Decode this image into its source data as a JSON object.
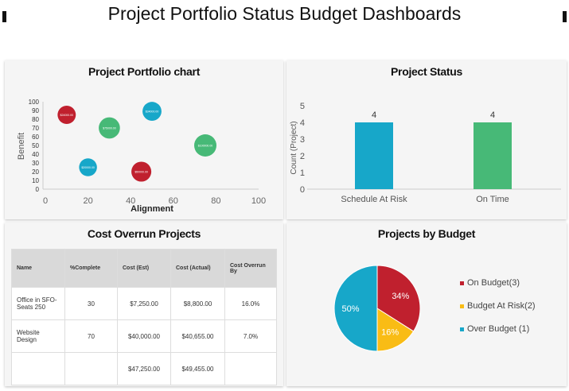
{
  "title": "Project Portfolio Status Budget Dashboards",
  "colors": {
    "red": "#c0202e",
    "green": "#47b977",
    "cyan": "#17a7c9",
    "yellow": "#f9bc15"
  },
  "chart_data": [
    {
      "type": "scatter",
      "title": "Project Portfolio chart",
      "xlabel": "Alignment",
      "ylabel": "Benefit",
      "xlim": [
        0,
        100
      ],
      "ylim": [
        0,
        100
      ],
      "xticks": [
        "0",
        "20",
        "40",
        "60",
        "80",
        "100"
      ],
      "yticks": [
        "0",
        "10",
        "20",
        "30",
        "40",
        "50",
        "60",
        "70",
        "80",
        "90",
        "100"
      ],
      "points": [
        {
          "x": 10,
          "y": 85,
          "color": "red",
          "label": "$24000.00"
        },
        {
          "x": 50,
          "y": 89,
          "color": "cyan",
          "label": "$34000.00"
        },
        {
          "x": 30,
          "y": 70,
          "color": "green",
          "label": "$75000.00"
        },
        {
          "x": 75,
          "y": 50,
          "color": "green",
          "label": "$100000.00"
        },
        {
          "x": 20,
          "y": 25,
          "color": "cyan",
          "label": "$20000.00"
        },
        {
          "x": 45,
          "y": 20,
          "color": "red",
          "label": "$50000.00"
        }
      ]
    },
    {
      "type": "bar",
      "title": "Project Status",
      "ylabel": "Count (Project)",
      "ylim": [
        0,
        5
      ],
      "yticks": [
        "0",
        "1",
        "2",
        "3",
        "4",
        "5"
      ],
      "categories": [
        "Schedule At Risk",
        "On Time"
      ],
      "values": [
        4,
        4
      ],
      "colors": [
        "#17a7c9",
        "#47b977"
      ]
    },
    {
      "type": "pie",
      "title": "Projects by Budget",
      "slices": [
        {
          "label": "On Budget(3)",
          "value": 34,
          "text": "34%",
          "color": "#c0202e"
        },
        {
          "label": "Budget At Risk(2)",
          "value": 16,
          "text": "16%",
          "color": "#f9bc15"
        },
        {
          "label": "Over Budget (1)",
          "value": 50,
          "text": "50%",
          "color": "#17a7c9"
        }
      ],
      "legend": "right"
    }
  ],
  "table": {
    "title": "Cost Overrun Projects",
    "headers": [
      "Name",
      "%Complete",
      "Cost (Est)",
      "Cost (Actual)",
      "Cost Overrun By"
    ],
    "rows": [
      [
        "Office in SFO-Seats 250",
        "30",
        "$7,250.00",
        "$8,800.00",
        "16.0%"
      ],
      [
        "Website Design",
        "70",
        "$40,000.00",
        "$40,655.00",
        "7.0%"
      ],
      [
        "",
        "",
        "$47,250.00",
        "$49,455.00",
        ""
      ]
    ]
  }
}
